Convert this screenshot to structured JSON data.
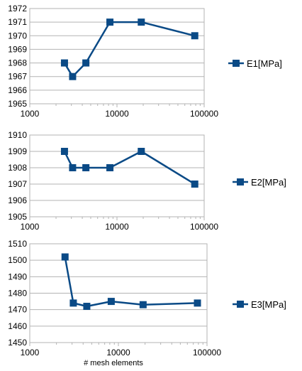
{
  "chart_data": [
    {
      "type": "line",
      "x_scale": "log",
      "x": [
        2500,
        3100,
        4400,
        8300,
        19000,
        78000
      ],
      "series": [
        {
          "name": "E1[MPa]",
          "values": [
            1968,
            1967,
            1968,
            1971,
            1971,
            1970
          ]
        }
      ],
      "xlim": [
        1000,
        100000
      ],
      "ylim": [
        1965,
        1972
      ],
      "x_ticks": [
        "1000",
        "10000",
        "100000"
      ],
      "y_ticks": [
        "1965",
        "1966",
        "1967",
        "1968",
        "1969",
        "1970",
        "1971",
        "1972"
      ],
      "xlabel": "",
      "ylabel": "",
      "grid": "horizontal",
      "legend": "right",
      "color": "#0a4a86"
    },
    {
      "type": "line",
      "x_scale": "log",
      "x": [
        2500,
        3100,
        4400,
        8300,
        19000,
        78000
      ],
      "series": [
        {
          "name": "E2[MPa]",
          "values": [
            1909,
            1908,
            1908,
            1908,
            1909,
            1907
          ]
        }
      ],
      "xlim": [
        1000,
        100000
      ],
      "ylim": [
        1905,
        1910
      ],
      "x_ticks": [
        "1000",
        "10000",
        "100000"
      ],
      "y_ticks": [
        "1905",
        "1906",
        "1907",
        "1908",
        "1909",
        "1910"
      ],
      "xlabel": "",
      "ylabel": "",
      "grid": "horizontal",
      "legend": "right",
      "color": "#0a4a86"
    },
    {
      "type": "line",
      "x_scale": "log",
      "x": [
        2500,
        3100,
        4400,
        8300,
        19000,
        78000
      ],
      "series": [
        {
          "name": "E3[MPa]",
          "values": [
            1502,
            1474,
            1472,
            1475,
            1473,
            1474
          ]
        }
      ],
      "xlim": [
        1000,
        100000
      ],
      "ylim": [
        1450,
        1510
      ],
      "x_ticks": [
        "1000",
        "10000",
        "100000"
      ],
      "y_ticks": [
        "1450",
        "1460",
        "1470",
        "1480",
        "1490",
        "1500",
        "1510"
      ],
      "xlabel": "# mesh elements",
      "ylabel": "",
      "grid": "horizontal",
      "legend": "right",
      "color": "#0a4a86"
    }
  ]
}
